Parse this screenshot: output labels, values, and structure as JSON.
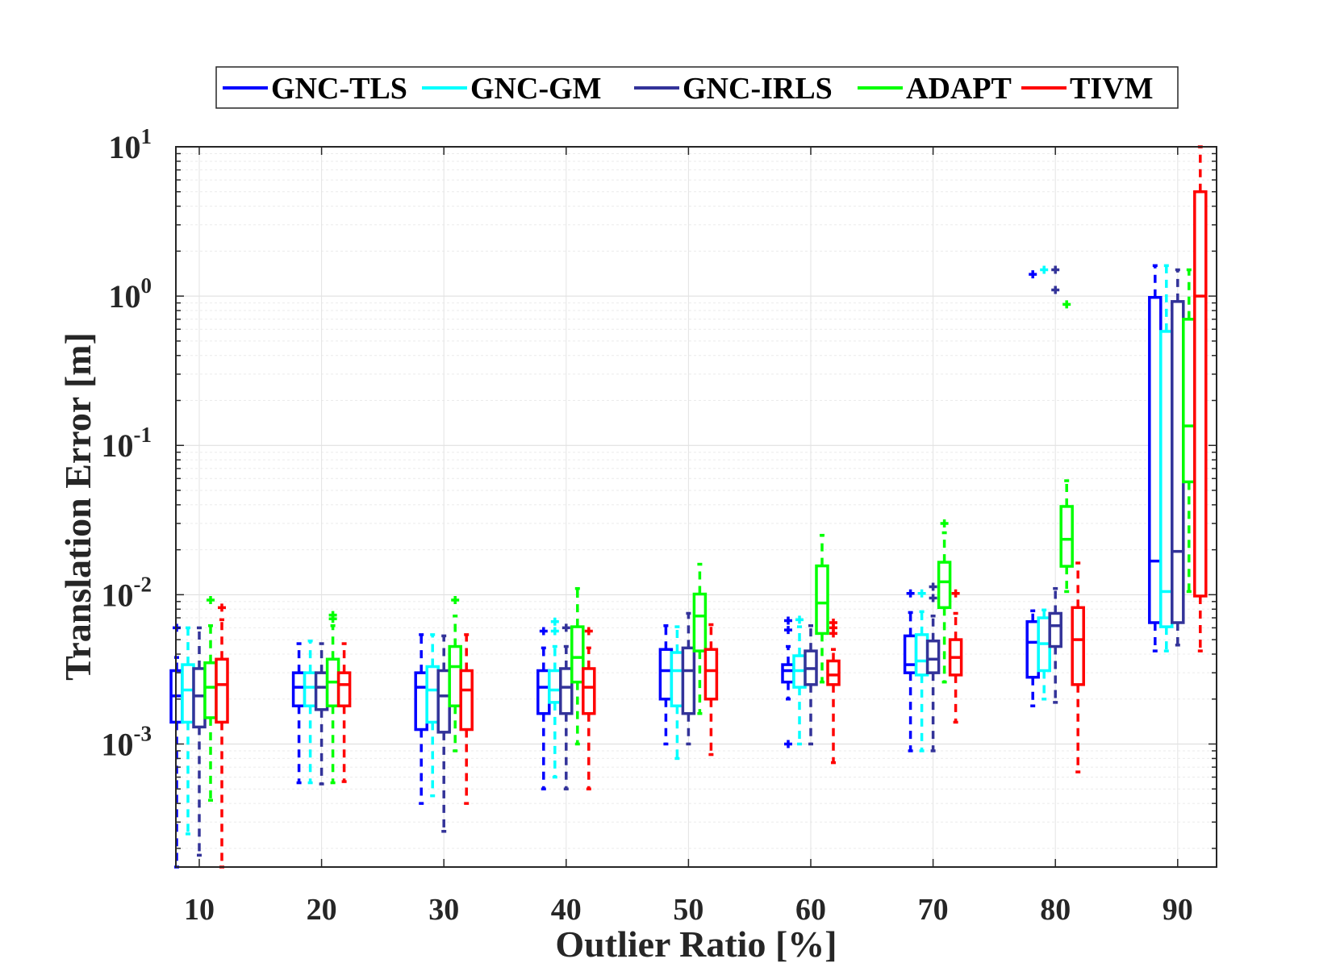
{
  "chart_data": {
    "type": "boxplot",
    "xlabel": "Outlier Ratio [%]",
    "ylabel": "Translation Error [m]",
    "yscale": "log",
    "ylim": [
      0.00015,
      10
    ],
    "grid": true,
    "legend_position": "top",
    "categories": [
      "10",
      "20",
      "30",
      "40",
      "50",
      "60",
      "70",
      "80",
      "90"
    ],
    "y_ticks": [
      {
        "base": "10",
        "exp": "-3",
        "value": 0.001
      },
      {
        "base": "10",
        "exp": "-2",
        "value": 0.01
      },
      {
        "base": "10",
        "exp": "-1",
        "value": 0.1
      },
      {
        "base": "10",
        "exp": "0",
        "value": 1
      },
      {
        "base": "10",
        "exp": "1",
        "value": 10
      }
    ],
    "series": [
      {
        "name": "GNC-TLS",
        "color": "#0000ff",
        "boxes": [
          {
            "wlow": 0.00015,
            "q1": 0.0014,
            "med": 0.0021,
            "q3": 0.0031,
            "whigh": 0.0038,
            "outliers": [
              0.006
            ]
          },
          {
            "wlow": 0.00055,
            "q1": 0.0018,
            "med": 0.0024,
            "q3": 0.003,
            "whigh": 0.0047,
            "outliers": []
          },
          {
            "wlow": 0.0004,
            "q1": 0.00125,
            "med": 0.0024,
            "q3": 0.003,
            "whigh": 0.0054,
            "outliers": []
          },
          {
            "wlow": 0.0005,
            "q1": 0.0016,
            "med": 0.0024,
            "q3": 0.0031,
            "whigh": 0.0044,
            "outliers": [
              0.0057
            ]
          },
          {
            "wlow": 0.001,
            "q1": 0.002,
            "med": 0.0031,
            "q3": 0.0043,
            "whigh": 0.0062,
            "outliers": []
          },
          {
            "wlow": 0.002,
            "q1": 0.0026,
            "med": 0.0031,
            "q3": 0.0034,
            "whigh": 0.0045,
            "outliers": [
              0.001,
              0.0058,
              0.0067
            ]
          },
          {
            "wlow": 0.0009,
            "q1": 0.003,
            "med": 0.0034,
            "q3": 0.0053,
            "whigh": 0.0076,
            "outliers": [
              0.0102
            ]
          },
          {
            "wlow": 0.0018,
            "q1": 0.0028,
            "med": 0.0048,
            "q3": 0.0066,
            "whigh": 0.0078,
            "outliers": [
              1.4
            ]
          },
          {
            "wlow": 0.0042,
            "q1": 0.0065,
            "med": 0.0168,
            "q3": 0.98,
            "whigh": 1.6,
            "outliers": []
          }
        ]
      },
      {
        "name": "GNC-GM",
        "color": "#00ffff",
        "boxes": [
          {
            "wlow": 0.00025,
            "q1": 0.0014,
            "med": 0.0023,
            "q3": 0.0034,
            "whigh": 0.006,
            "outliers": []
          },
          {
            "wlow": 0.00055,
            "q1": 0.0018,
            "med": 0.0024,
            "q3": 0.003,
            "whigh": 0.0049,
            "outliers": []
          },
          {
            "wlow": 0.00045,
            "q1": 0.0014,
            "med": 0.0023,
            "q3": 0.0033,
            "whigh": 0.0054,
            "outliers": []
          },
          {
            "wlow": 0.0006,
            "q1": 0.0019,
            "med": 0.0023,
            "q3": 0.0031,
            "whigh": 0.0045,
            "outliers": [
              0.0057,
              0.0066
            ]
          },
          {
            "wlow": 0.0008,
            "q1": 0.0018,
            "med": 0.0031,
            "q3": 0.0041,
            "whigh": 0.0061,
            "outliers": []
          },
          {
            "wlow": 0.001,
            "q1": 0.0024,
            "med": 0.0031,
            "q3": 0.0039,
            "whigh": 0.0061,
            "outliers": [
              0.0068
            ]
          },
          {
            "wlow": 0.0009,
            "q1": 0.0029,
            "med": 0.0036,
            "q3": 0.0054,
            "whigh": 0.0077,
            "outliers": [
              0.0102
            ]
          },
          {
            "wlow": 0.002,
            "q1": 0.0031,
            "med": 0.0047,
            "q3": 0.007,
            "whigh": 0.0079,
            "outliers": [
              1.5
            ]
          },
          {
            "wlow": 0.0042,
            "q1": 0.0061,
            "med": 0.0105,
            "q3": 0.58,
            "whigh": 1.6,
            "outliers": []
          }
        ]
      },
      {
        "name": "GNC-IRLS",
        "color": "#333399",
        "boxes": [
          {
            "wlow": 0.00018,
            "q1": 0.0013,
            "med": 0.0021,
            "q3": 0.0032,
            "whigh": 0.006,
            "outliers": []
          },
          {
            "wlow": 0.00054,
            "q1": 0.0017,
            "med": 0.0024,
            "q3": 0.003,
            "whigh": 0.0047,
            "outliers": []
          },
          {
            "wlow": 0.00026,
            "q1": 0.0012,
            "med": 0.0021,
            "q3": 0.0031,
            "whigh": 0.0053,
            "outliers": []
          },
          {
            "wlow": 0.0005,
            "q1": 0.0016,
            "med": 0.0024,
            "q3": 0.0032,
            "whigh": 0.0045,
            "outliers": [
              0.006
            ]
          },
          {
            "wlow": 0.001,
            "q1": 0.0016,
            "med": 0.0031,
            "q3": 0.0044,
            "whigh": 0.0075,
            "outliers": []
          },
          {
            "wlow": 0.001,
            "q1": 0.0025,
            "med": 0.0032,
            "q3": 0.0042,
            "whigh": 0.0062,
            "outliers": []
          },
          {
            "wlow": 0.0009,
            "q1": 0.003,
            "med": 0.0037,
            "q3": 0.0049,
            "whigh": 0.0072,
            "outliers": [
              0.0095,
              0.0113
            ]
          },
          {
            "wlow": 0.0019,
            "q1": 0.0045,
            "med": 0.0062,
            "q3": 0.0075,
            "whigh": 0.011,
            "outliers": [
              1.1,
              1.5
            ]
          },
          {
            "wlow": 0.0046,
            "q1": 0.0065,
            "med": 0.0195,
            "q3": 0.92,
            "whigh": 1.5,
            "outliers": []
          }
        ]
      },
      {
        "name": "ADAPT",
        "color": "#00ff00",
        "boxes": [
          {
            "wlow": 0.00042,
            "q1": 0.0015,
            "med": 0.0024,
            "q3": 0.0035,
            "whigh": 0.0062,
            "outliers": [
              0.0092
            ]
          },
          {
            "wlow": 0.00055,
            "q1": 0.0018,
            "med": 0.0026,
            "q3": 0.0037,
            "whigh": 0.0062,
            "outliers": [
              0.0069,
              0.0073
            ]
          },
          {
            "wlow": 0.0009,
            "q1": 0.0018,
            "med": 0.0033,
            "q3": 0.0045,
            "whigh": 0.0072,
            "outliers": [
              0.0092
            ]
          },
          {
            "wlow": 0.001,
            "q1": 0.0026,
            "med": 0.0038,
            "q3": 0.0061,
            "whigh": 0.011,
            "outliers": []
          },
          {
            "wlow": 0.0016,
            "q1": 0.0042,
            "med": 0.0072,
            "q3": 0.0101,
            "whigh": 0.016,
            "outliers": []
          },
          {
            "wlow": 0.0026,
            "q1": 0.0055,
            "med": 0.0088,
            "q3": 0.0156,
            "whigh": 0.025,
            "outliers": []
          },
          {
            "wlow": 0.0026,
            "q1": 0.0082,
            "med": 0.0122,
            "q3": 0.0165,
            "whigh": 0.026,
            "outliers": [
              0.03
            ]
          },
          {
            "wlow": 0.0105,
            "q1": 0.0155,
            "med": 0.0235,
            "q3": 0.039,
            "whigh": 0.058,
            "outliers": [
              0.88
            ]
          },
          {
            "wlow": 0.0105,
            "q1": 0.057,
            "med": 0.135,
            "q3": 0.7,
            "whigh": 1.5,
            "outliers": []
          }
        ]
      },
      {
        "name": "TIVM",
        "color": "#ff0000",
        "boxes": [
          {
            "wlow": 0.00015,
            "q1": 0.0014,
            "med": 0.0025,
            "q3": 0.0037,
            "whigh": 0.0068,
            "outliers": [
              0.0082
            ]
          },
          {
            "wlow": 0.00056,
            "q1": 0.0018,
            "med": 0.0025,
            "q3": 0.003,
            "whigh": 0.0047,
            "outliers": []
          },
          {
            "wlow": 0.0004,
            "q1": 0.00125,
            "med": 0.0023,
            "q3": 0.0031,
            "whigh": 0.0054,
            "outliers": []
          },
          {
            "wlow": 0.0005,
            "q1": 0.0016,
            "med": 0.0024,
            "q3": 0.0032,
            "whigh": 0.0044,
            "outliers": [
              0.0057
            ]
          },
          {
            "wlow": 0.00085,
            "q1": 0.002,
            "med": 0.0031,
            "q3": 0.0043,
            "whigh": 0.0063,
            "outliers": []
          },
          {
            "wlow": 0.00075,
            "q1": 0.0025,
            "med": 0.0029,
            "q3": 0.0036,
            "whigh": 0.0043,
            "outliers": [
              0.0055,
              0.006,
              0.0065
            ]
          },
          {
            "wlow": 0.0014,
            "q1": 0.0029,
            "med": 0.0038,
            "q3": 0.005,
            "whigh": 0.0075,
            "outliers": [
              0.0102
            ]
          },
          {
            "wlow": 0.00065,
            "q1": 0.0025,
            "med": 0.005,
            "q3": 0.0082,
            "whigh": 0.0163,
            "outliers": []
          },
          {
            "wlow": 0.0042,
            "q1": 0.0098,
            "med": 1.0,
            "q3": 5.0,
            "whigh": 10,
            "outliers": []
          }
        ]
      }
    ]
  }
}
